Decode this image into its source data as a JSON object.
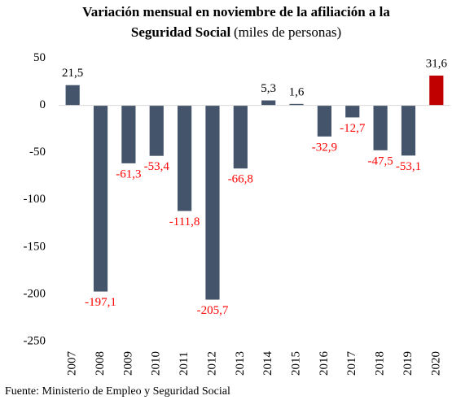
{
  "chart_data": {
    "type": "bar",
    "title": [
      "Variación mensual en noviembre de la afiliación a la",
      "Seguridad Social",
      "(miles  de personas)"
    ],
    "source": "Fuente:  Ministerio  de Empleo  y Seguridad Social",
    "categories": [
      "2007",
      "2008",
      "2009",
      "2010",
      "2011",
      "2012",
      "2013",
      "2014",
      "2015",
      "2016",
      "2017",
      "2018",
      "2019",
      "2020"
    ],
    "values": [
      21.5,
      -197.1,
      -61.3,
      -53.4,
      -111.8,
      -205.7,
      -66.8,
      5.3,
      1.6,
      -32.9,
      -12.7,
      -47.5,
      -53.1,
      31.6
    ],
    "value_labels": [
      "21,5",
      "-197,1",
      "-61,3",
      "-53,4",
      "-111,8",
      "-205,7",
      "-66,8",
      "5,3",
      "1,6",
      "-32,9",
      "-12,7",
      "-47,5",
      "-53,1",
      "31,6"
    ],
    "colors": [
      "#44546a",
      "#44546a",
      "#44546a",
      "#44546a",
      "#44546a",
      "#44546a",
      "#44546a",
      "#44546a",
      "#44546a",
      "#44546a",
      "#44546a",
      "#44546a",
      "#44546a",
      "#c00000"
    ],
    "label_color": "#000000",
    "negative_label_color": "#ff0000",
    "ylim": [
      -250,
      60
    ],
    "yticks": [
      -250,
      -200,
      -150,
      -100,
      -50,
      0,
      50
    ],
    "grid": false
  }
}
